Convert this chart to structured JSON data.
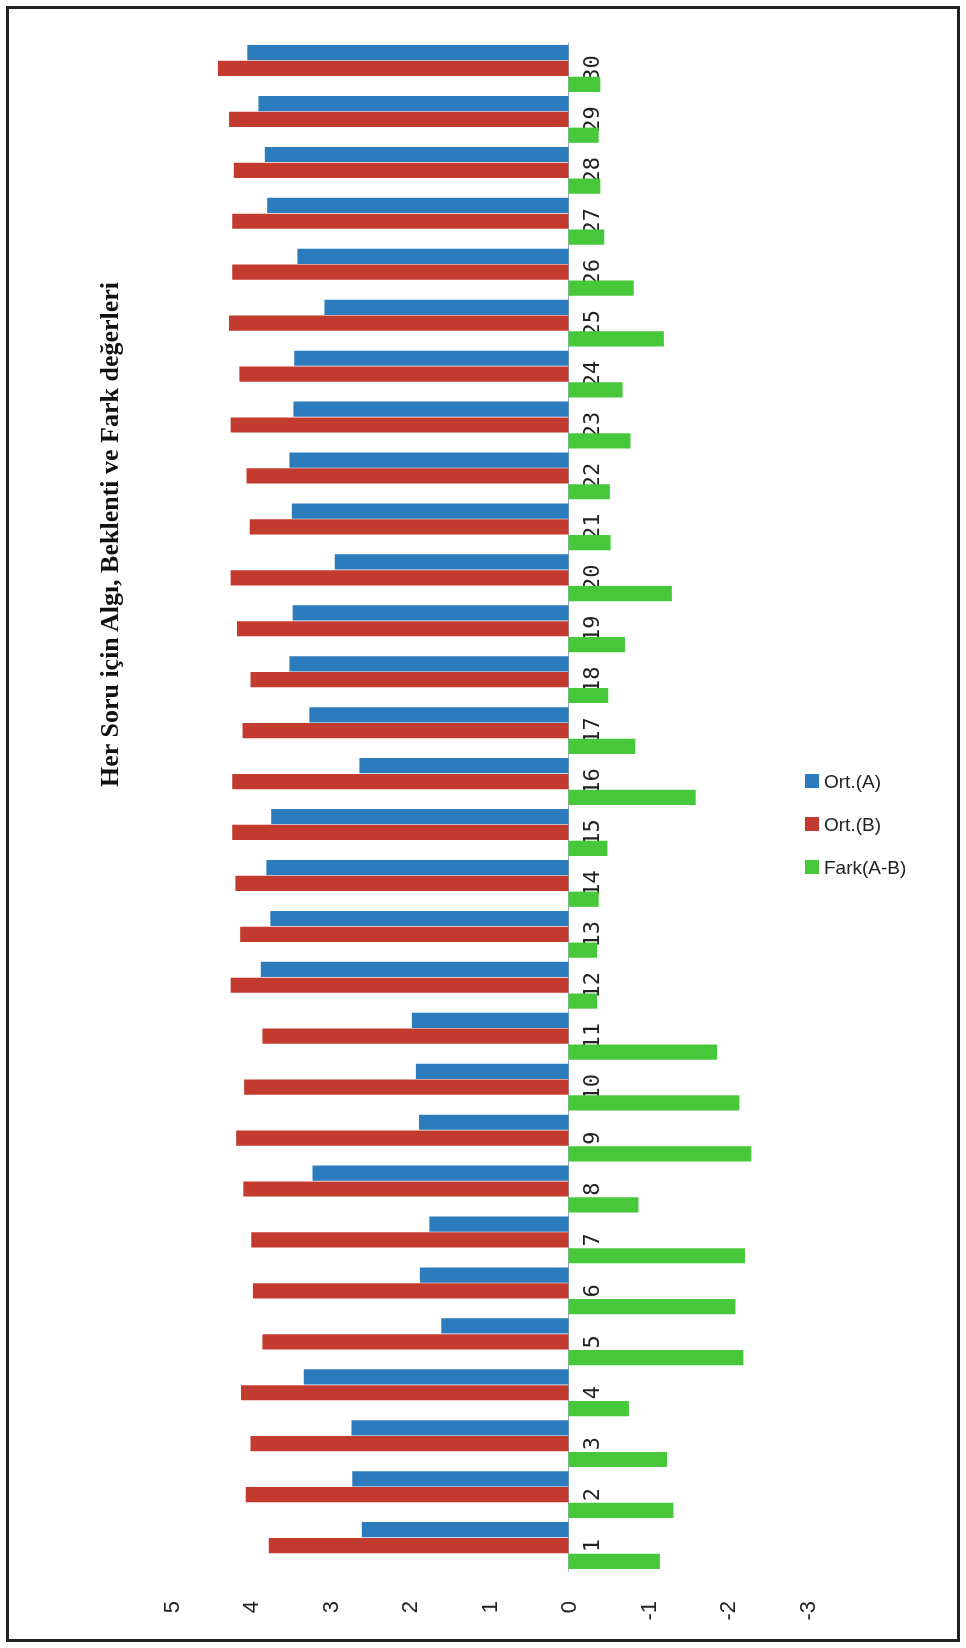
{
  "chart_data": {
    "type": "bar",
    "orientation": "horizontal",
    "title": "Her Soru için Algı, Beklenti ve Fark değerleri",
    "categories": [
      "30",
      "29",
      "28",
      "27",
      "26",
      "25",
      "24",
      "23",
      "22",
      "21",
      "20",
      "19",
      "18",
      "17",
      "16",
      "15",
      "14",
      "13",
      "12",
      "11",
      "10",
      "9",
      "8",
      "7",
      "6",
      "5",
      "4",
      "3",
      "2",
      "1"
    ],
    "series": [
      {
        "name": "Ort.(A)",
        "color": "#2b7bbd",
        "values": [
          4.04,
          3.9,
          3.82,
          3.79,
          3.41,
          3.07,
          3.45,
          3.46,
          3.51,
          3.48,
          2.94,
          3.47,
          3.51,
          3.26,
          2.63,
          3.74,
          3.8,
          3.75,
          3.87,
          1.97,
          1.92,
          1.88,
          3.22,
          1.75,
          1.87,
          1.6,
          3.33,
          2.73,
          2.72,
          2.6
        ]
      },
      {
        "name": "Ort.(B)",
        "color": "#c33b2e",
        "values": [
          4.41,
          4.27,
          4.21,
          4.23,
          4.23,
          4.27,
          4.14,
          4.25,
          4.05,
          4.01,
          4.25,
          4.17,
          4.0,
          4.1,
          4.23,
          4.23,
          4.19,
          4.13,
          4.25,
          3.85,
          4.08,
          4.18,
          4.09,
          3.99,
          3.97,
          3.85,
          4.12,
          4.0,
          4.06,
          3.77
        ]
      },
      {
        "name": "Fark(A-B)",
        "color": "#46c83a",
        "values": [
          -0.4,
          -0.38,
          -0.4,
          -0.45,
          -0.82,
          -1.2,
          -0.68,
          -0.78,
          -0.52,
          -0.53,
          -1.3,
          -0.71,
          -0.5,
          -0.84,
          -1.6,
          -0.49,
          -0.38,
          -0.36,
          -0.36,
          -1.87,
          -2.15,
          -2.3,
          -0.88,
          -2.22,
          -2.1,
          -2.2,
          -0.76,
          -1.24,
          -1.32,
          -1.15
        ]
      }
    ],
    "xlim": [
      5,
      -3
    ],
    "xticks": [
      5,
      4,
      3,
      2,
      1,
      0,
      -1,
      -2,
      -3
    ],
    "grid": false,
    "legend": "right"
  }
}
